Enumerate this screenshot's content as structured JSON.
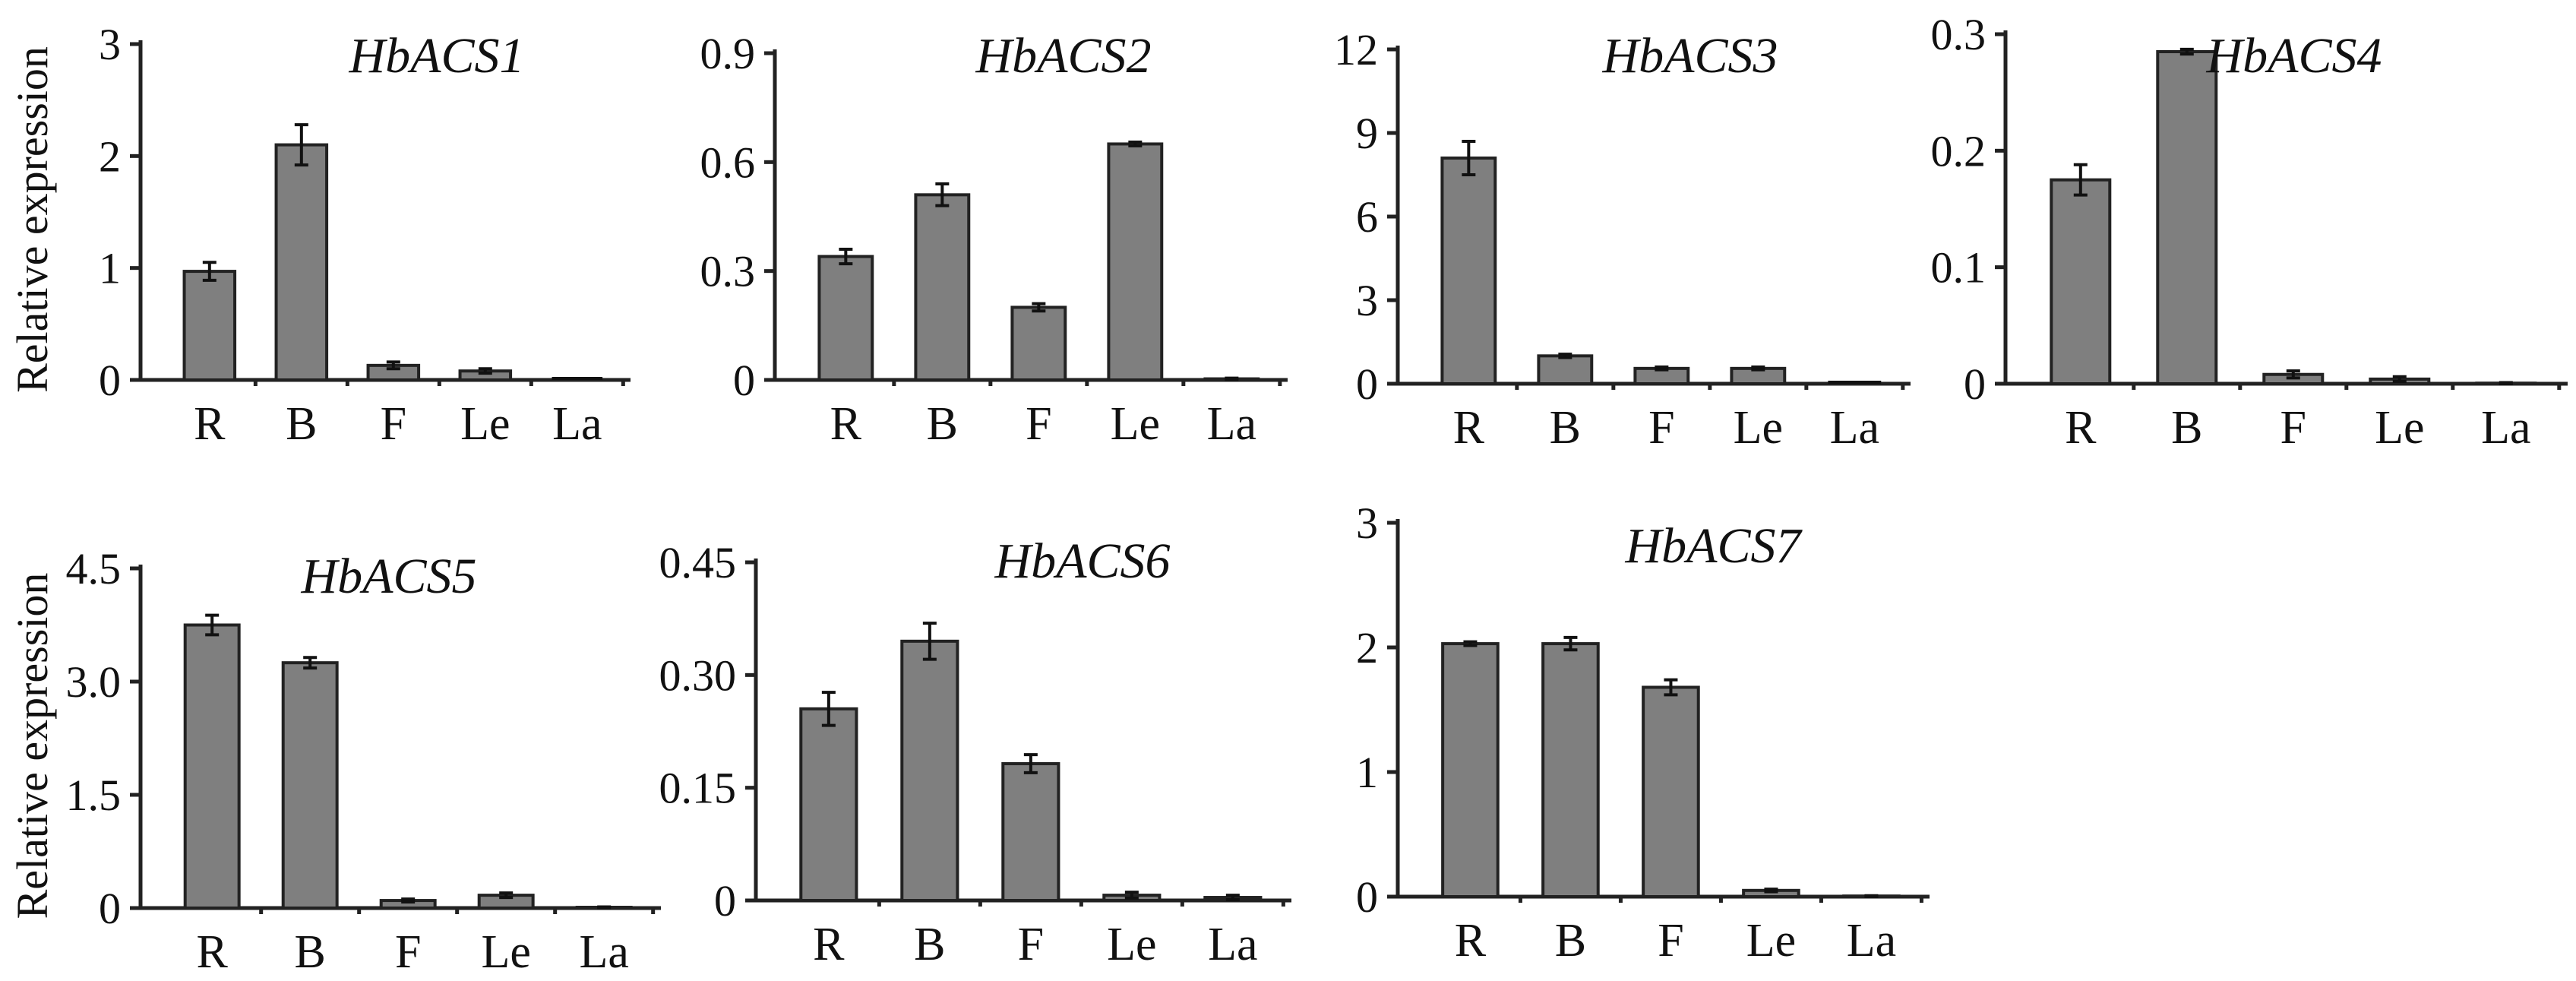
{
  "colors": {
    "bar_fill": "#7f7f7f",
    "axis": "#222222"
  },
  "chart_data": [
    {
      "type": "bar",
      "title": "HbACS1",
      "ylabel": "Relative expression",
      "categories": [
        "R",
        "B",
        "F",
        "Le",
        "La"
      ],
      "yticks": [
        "0",
        "1",
        "2",
        "3"
      ],
      "ylim": [
        0,
        3
      ],
      "values": [
        0.97,
        2.1,
        0.13,
        0.08,
        0.0
      ],
      "errors": [
        0.08,
        0.18,
        0.03,
        0.02,
        0.0
      ]
    },
    {
      "type": "bar",
      "title": "HbACS2",
      "ylabel": "",
      "categories": [
        "R",
        "B",
        "F",
        "Le",
        "La"
      ],
      "yticks": [
        "0",
        "0.3",
        "0.6",
        "0.9"
      ],
      "ylim": [
        0,
        0.9
      ],
      "values": [
        0.34,
        0.51,
        0.2,
        0.65,
        0.003
      ],
      "errors": [
        0.02,
        0.03,
        0.01,
        0.005,
        0.002
      ]
    },
    {
      "type": "bar",
      "title": "HbACS3",
      "ylabel": "",
      "categories": [
        "R",
        "B",
        "F",
        "Le",
        "La"
      ],
      "yticks": [
        "0",
        "3",
        "6",
        "9",
        "12"
      ],
      "ylim": [
        0,
        12
      ],
      "values": [
        8.1,
        1.0,
        0.55,
        0.55,
        0.0
      ],
      "errors": [
        0.6,
        0.06,
        0.05,
        0.05,
        0.0
      ]
    },
    {
      "type": "bar",
      "title": "HbACS4",
      "ylabel": "",
      "categories": [
        "R",
        "B",
        "F",
        "Le",
        "La"
      ],
      "yticks": [
        "0",
        "0.1",
        "0.2",
        "0.3"
      ],
      "ylim": [
        0,
        0.3
      ],
      "values": [
        0.175,
        0.285,
        0.008,
        0.004,
        0.0005
      ],
      "errors": [
        0.013,
        0.002,
        0.003,
        0.002,
        0.0005
      ]
    },
    {
      "type": "bar",
      "title": "HbACS5",
      "ylabel": "Relative expression",
      "categories": [
        "R",
        "B",
        "F",
        "Le",
        "La"
      ],
      "yticks": [
        "0",
        "1.5",
        "3.0",
        "4.5"
      ],
      "ylim": [
        0,
        4.5
      ],
      "values": [
        3.75,
        3.25,
        0.1,
        0.17,
        0.01
      ],
      "errors": [
        0.13,
        0.07,
        0.02,
        0.03,
        0.005
      ]
    },
    {
      "type": "bar",
      "title": "HbACS6",
      "ylabel": "",
      "categories": [
        "R",
        "B",
        "F",
        "Le",
        "La"
      ],
      "yticks": [
        "0",
        "0.15",
        "0.30",
        "0.45"
      ],
      "ylim": [
        0,
        0.45
      ],
      "values": [
        0.255,
        0.345,
        0.182,
        0.007,
        0.004
      ],
      "errors": [
        0.022,
        0.024,
        0.012,
        0.004,
        0.003
      ]
    },
    {
      "type": "bar",
      "title": "HbACS7",
      "ylabel": "",
      "categories": [
        "R",
        "B",
        "F",
        "Le",
        "La"
      ],
      "yticks": [
        "0",
        "1",
        "2",
        "3"
      ],
      "ylim": [
        0,
        3
      ],
      "values": [
        2.03,
        2.03,
        1.68,
        0.05,
        0.005
      ],
      "errors": [
        0.015,
        0.05,
        0.06,
        0.01,
        0.003
      ]
    }
  ]
}
